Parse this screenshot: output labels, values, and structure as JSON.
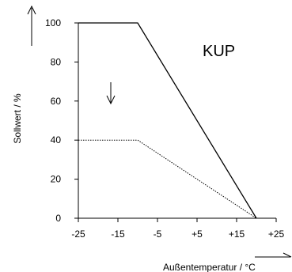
{
  "chart_data": {
    "type": "line",
    "title": "",
    "annotation": "KUP",
    "xlabel": "Außentemperatur / °C",
    "ylabel": "Sollwert / %",
    "xlim": [
      -25,
      25
    ],
    "ylim": [
      0,
      100
    ],
    "x_ticks": [
      "-25",
      "-15",
      "-5",
      "+5",
      "+15",
      "+25"
    ],
    "y_ticks": [
      "0",
      "20",
      "40",
      "60",
      "80",
      "100"
    ],
    "grid": false,
    "legend": "none",
    "series": [
      {
        "style": "solid",
        "color": "#000000",
        "points": [
          [
            -25,
            100
          ],
          [
            -10,
            100
          ],
          [
            20,
            0
          ]
        ]
      },
      {
        "style": "dotted",
        "color": "#000000",
        "points": [
          [
            -25,
            40
          ],
          [
            -10,
            40
          ],
          [
            20,
            0
          ]
        ]
      }
    ]
  }
}
